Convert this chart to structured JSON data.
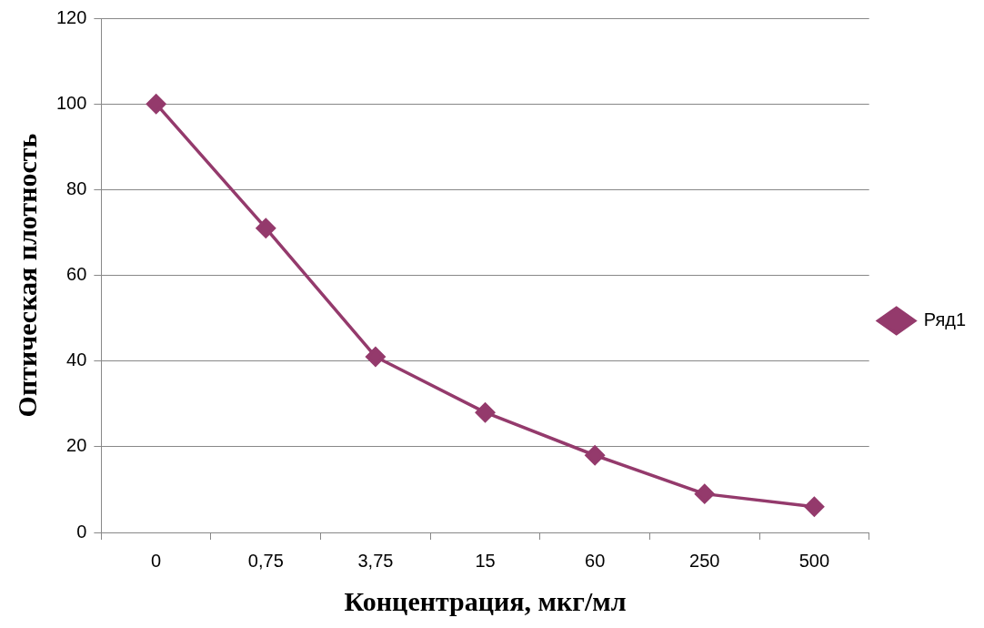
{
  "chart_data": {
    "type": "line",
    "xlabel": "Концентрация, мкг/мл",
    "ylabel": "Оптическая плотность",
    "categories": [
      "0",
      "0,75",
      "3,75",
      "15",
      "60",
      "250",
      "500"
    ],
    "series": [
      {
        "name": "Ряд1",
        "color": "#943a6c",
        "values": [
          100,
          71,
          41,
          28,
          18,
          9,
          6
        ]
      }
    ],
    "ylim": [
      0,
      120
    ],
    "yticks": [
      0,
      20,
      40,
      60,
      80,
      100,
      120
    ],
    "grid": "y",
    "legend": "right",
    "marker": "diamond",
    "line_style": "solid"
  }
}
